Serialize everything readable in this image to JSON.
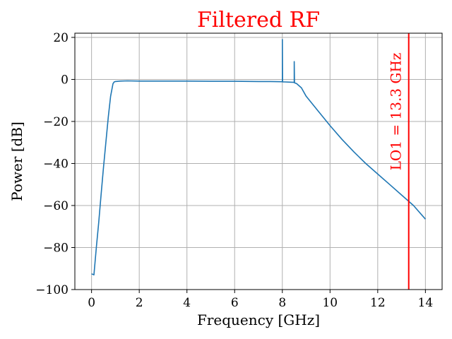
{
  "chart_data": {
    "type": "line",
    "title": "Filtered RF",
    "xlabel": "Frequency [GHz]",
    "ylabel": "Power [dB]",
    "xlim": [
      -0.7,
      14.7
    ],
    "ylim": [
      -100,
      22
    ],
    "xticks": [
      0,
      2,
      4,
      6,
      8,
      10,
      12,
      14
    ],
    "yticks": [
      -100,
      -80,
      -60,
      -40,
      -20,
      0,
      20
    ],
    "xtick_labels": [
      "0",
      "2",
      "4",
      "6",
      "8",
      "10",
      "12",
      "14"
    ],
    "ytick_labels": [
      "−100",
      "−80",
      "−60",
      "−40",
      "−20",
      "0",
      "20"
    ],
    "grid": true,
    "series": [
      {
        "color": "#1f77b4",
        "x": [
          0.0,
          0.1,
          0.2,
          0.3,
          0.4,
          0.5,
          0.6,
          0.7,
          0.8,
          0.9,
          0.95,
          1.0,
          1.2,
          1.5,
          2.0,
          3.0,
          4.0,
          5.0,
          6.0,
          7.0,
          7.5,
          7.95,
          8.0,
          8.0,
          8.01,
          8.1,
          8.3,
          8.48,
          8.5,
          8.5,
          8.51,
          8.6,
          8.8,
          9.0,
          9.5,
          10.0,
          10.5,
          11.0,
          11.5,
          12.0,
          12.5,
          13.0,
          13.3,
          13.5,
          14.0
        ],
        "y": [
          -92.5,
          -93,
          -80,
          -68,
          -55,
          -42,
          -30,
          -18,
          -8,
          -2,
          -1.2,
          -1.0,
          -0.8,
          -0.7,
          -0.8,
          -0.8,
          -0.8,
          -0.9,
          -0.9,
          -1.0,
          -1.0,
          -1.1,
          -1.1,
          19,
          -1.2,
          -1.2,
          -1.3,
          -1.4,
          -1.5,
          8.5,
          -1.6,
          -2,
          -4,
          -8,
          -15,
          -22,
          -28.5,
          -34.5,
          -40,
          -45,
          -50,
          -55,
          -58,
          -60,
          -66.5
        ]
      }
    ],
    "vline": {
      "x": 13.3,
      "color": "#ff0000",
      "label": "LO1 = 13.3 GHz"
    }
  }
}
